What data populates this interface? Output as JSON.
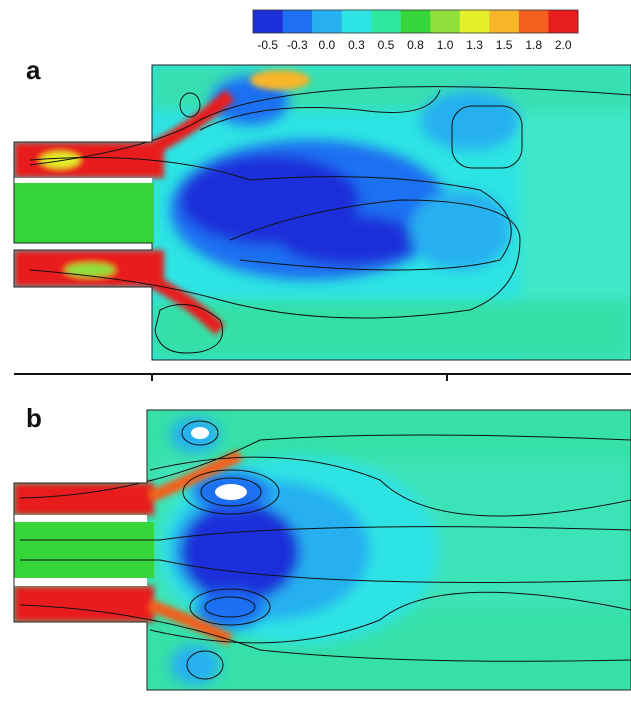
{
  "colorbar": {
    "labels": [
      "-0.5",
      "-0.3",
      "0.0",
      "0.3",
      "0.5",
      "0.8",
      "1.0",
      "1.3",
      "1.5",
      "1.8",
      "2.0"
    ],
    "colors": [
      "#1c2fd9",
      "#1f6ff2",
      "#27b0f0",
      "#2de3e3",
      "#2ee8a0",
      "#36d63a",
      "#8fe03a",
      "#e3f02a",
      "#f7b52a",
      "#f2601f",
      "#e81e1e"
    ]
  },
  "panels": [
    {
      "label": "a"
    },
    {
      "label": "b"
    }
  ]
}
